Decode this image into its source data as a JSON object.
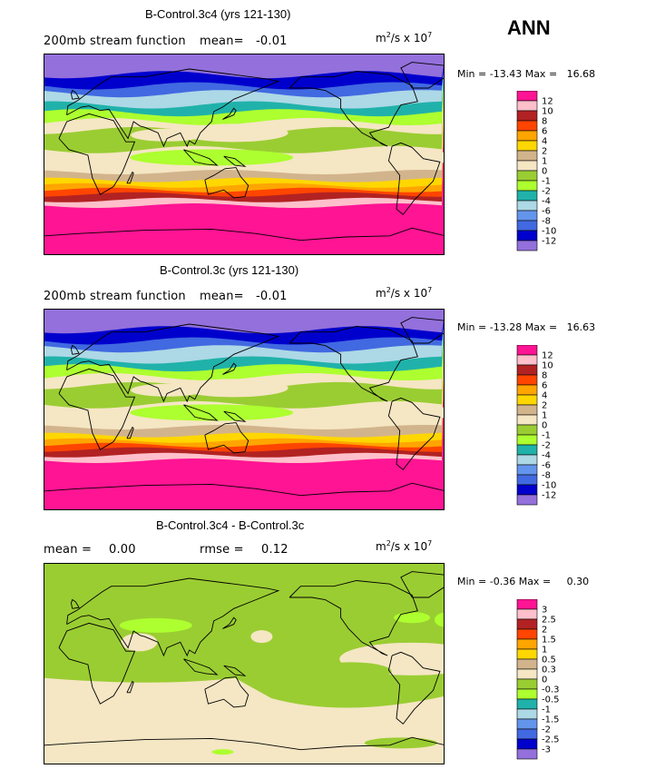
{
  "season": "ANN",
  "chart_data": [
    {
      "type": "contour-map",
      "title": "B-Control.3c4 (yrs 121-130)",
      "field": "200mb stream function",
      "mean_label": "mean=",
      "mean": "-0.01",
      "units_base": "m",
      "units_mid": "/s x 10",
      "units_exp_a": "2",
      "units_exp_b": "7",
      "min_label": "Min =",
      "min": "-13.43",
      "max_label": "Max =",
      "max": "16.68",
      "levels": [
        "12",
        "10",
        "8",
        "6",
        "4",
        "2",
        "1",
        "0",
        "-1",
        "-2",
        "-4",
        "-6",
        "-8",
        "-10",
        "-12"
      ],
      "colors": [
        "#ff1493",
        "#ffc0cb",
        "#b22222",
        "#ff4500",
        "#ffa500",
        "#ffd700",
        "#d2b48c",
        "#f5e6c4",
        "#9acd32",
        "#adff2f",
        "#20b2aa",
        "#add8e6",
        "#6495ed",
        "#4169e1",
        "#0000cd",
        "#9370db"
      ],
      "band_order": [
        15,
        14,
        13,
        12,
        11,
        10,
        9,
        7,
        8,
        9,
        10,
        11,
        12,
        13,
        14,
        15,
        0
      ],
      "band_latitudes": [
        90,
        70,
        55,
        45,
        38,
        30,
        22,
        15,
        5,
        -15,
        -22,
        -27,
        -31,
        -35,
        -40,
        -45,
        -90
      ]
    },
    {
      "type": "contour-map",
      "title": "B-Control.3c (yrs 121-130)",
      "field": "200mb stream function",
      "mean_label": "mean=",
      "mean": "-0.01",
      "units_base": "m",
      "units_mid": "/s x 10",
      "units_exp_a": "2",
      "units_exp_b": "7",
      "min_label": "Min =",
      "min": "-13.28",
      "max_label": "Max =",
      "max": "16.63",
      "levels": [
        "12",
        "10",
        "8",
        "6",
        "4",
        "2",
        "1",
        "0",
        "-1",
        "-2",
        "-4",
        "-6",
        "-8",
        "-10",
        "-12"
      ],
      "colors": [
        "#ff1493",
        "#ffc0cb",
        "#b22222",
        "#ff4500",
        "#ffa500",
        "#ffd700",
        "#d2b48c",
        "#f5e6c4",
        "#9acd32",
        "#adff2f",
        "#20b2aa",
        "#add8e6",
        "#6495ed",
        "#4169e1",
        "#0000cd",
        "#9370db"
      ]
    },
    {
      "type": "contour-map",
      "title": "B-Control.3c4 - B-Control.3c",
      "mean_label": "mean =",
      "mean": "0.00",
      "rmse_label": "rmse =",
      "rmse": "0.12",
      "units_base": "m",
      "units_mid": "/s x 10",
      "units_exp_a": "2",
      "units_exp_b": "7",
      "min_label": "Min =",
      "min": "-0.36",
      "max_label": "Max =",
      "max": "0.30",
      "levels": [
        "3",
        "2.5",
        "2",
        "1.5",
        "1",
        "0.5",
        "0.3",
        "0",
        "-0.3",
        "-0.5",
        "-1",
        "-1.5",
        "-2",
        "-2.5",
        "-3"
      ],
      "colors": [
        "#ff1493",
        "#ffc0cb",
        "#b22222",
        "#ff4500",
        "#ffa500",
        "#ffd700",
        "#d2b48c",
        "#f5e6c4",
        "#9acd32",
        "#adff2f",
        "#20b2aa",
        "#add8e6",
        "#6495ed",
        "#4169e1",
        "#0000cd",
        "#9370db"
      ]
    }
  ]
}
